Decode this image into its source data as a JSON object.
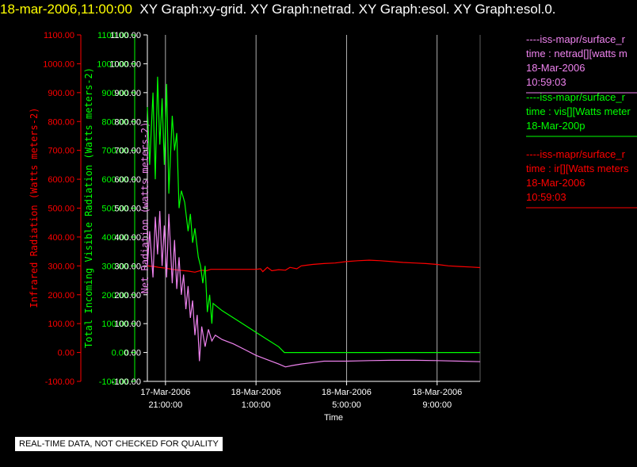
{
  "header": {
    "timestamp": "18-mar-2006,11:00:00",
    "graphs": "XY Graph:xy-grid.  XY Graph:netrad.  XY Graph:esol.  XY Graph:esol.0."
  },
  "disclaimer": "REAL-TIME DATA, NOT CHECKED FOR QUALITY",
  "colors": {
    "infrared": "#ff0000",
    "visible": "#00ff00",
    "net": "#ee82ee",
    "grid": "#ffffff"
  },
  "chart_data": {
    "type": "line",
    "xlabel": "Time",
    "x_ticks": [
      {
        "line1": "17-Mar-2006",
        "line2": "21:00:00"
      },
      {
        "line1": "18-Mar-2006",
        "line2": "1:00:00"
      },
      {
        "line1": "18-Mar-2006",
        "line2": "5:00:00"
      },
      {
        "line1": "18-Mar-2006",
        "line2": "9:00:00"
      }
    ],
    "x_unit": "hours since 17-Mar-2006 21:00",
    "xlim": [
      -0.8,
      13.9
    ],
    "ylim": [
      -100,
      1100
    ],
    "y_ticks": [
      "-100.00",
      "0.00",
      "100.00",
      "200.00",
      "300.00",
      "400.00",
      "500.00",
      "600.00",
      "700.00",
      "800.00",
      "900.00",
      "1000.00",
      "1100.00"
    ],
    "axes": [
      {
        "label": "Infrared Radiation (Watts meters-2)",
        "color": "#ff0000"
      },
      {
        "label": "Total Incoming Visible Radiation (Watts meters-2)",
        "color": "#00ff00"
      },
      {
        "label": "Net Radiation (watts meters-2)",
        "color": "#ee82ee"
      }
    ],
    "series": [
      {
        "name": "ir",
        "color": "#ff0000",
        "points": [
          [
            -0.8,
            300
          ],
          [
            -0.5,
            298
          ],
          [
            -0.3,
            295
          ],
          [
            0,
            292
          ],
          [
            0.3,
            288
          ],
          [
            0.6,
            285
          ],
          [
            1,
            282
          ],
          [
            1.3,
            278
          ],
          [
            1.6,
            285
          ],
          [
            1.8,
            283
          ],
          [
            2,
            288
          ],
          [
            2.5,
            288
          ],
          [
            3,
            288
          ],
          [
            3.5,
            288
          ],
          [
            4,
            288
          ],
          [
            4.2,
            290
          ],
          [
            4.3,
            280
          ],
          [
            4.5,
            295
          ],
          [
            4.7,
            283
          ],
          [
            5,
            287
          ],
          [
            5.3,
            285
          ],
          [
            5.5,
            295
          ],
          [
            5.8,
            290
          ],
          [
            6,
            300
          ],
          [
            6.5,
            305
          ],
          [
            7,
            308
          ],
          [
            7.5,
            310
          ],
          [
            8,
            315
          ],
          [
            8.5,
            318
          ],
          [
            9,
            320
          ],
          [
            9.5,
            318
          ],
          [
            10,
            315
          ],
          [
            10.5,
            312
          ],
          [
            11,
            310
          ],
          [
            11.5,
            308
          ],
          [
            12,
            305
          ],
          [
            12.5,
            300
          ],
          [
            13,
            298
          ],
          [
            13.5,
            296
          ],
          [
            13.9,
            294
          ]
        ]
      },
      {
        "name": "vis",
        "color": "#00ff00",
        "points": [
          [
            -0.8,
            850
          ],
          [
            -0.7,
            650
          ],
          [
            -0.55,
            900
          ],
          [
            -0.45,
            600
          ],
          [
            -0.35,
            955
          ],
          [
            -0.25,
            720
          ],
          [
            -0.15,
            880
          ],
          [
            -0.05,
            650
          ],
          [
            0.05,
            930
          ],
          [
            0.15,
            550
          ],
          [
            0.3,
            820
          ],
          [
            0.4,
            700
          ],
          [
            0.5,
            760
          ],
          [
            0.6,
            500
          ],
          [
            0.7,
            560
          ],
          [
            0.85,
            520
          ],
          [
            1.0,
            420
          ],
          [
            1.1,
            480
          ],
          [
            1.2,
            380
          ],
          [
            1.3,
            430
          ],
          [
            1.45,
            330
          ],
          [
            1.55,
            300
          ],
          [
            1.65,
            240
          ],
          [
            1.75,
            300
          ],
          [
            1.85,
            140
          ],
          [
            1.95,
            200
          ],
          [
            2.05,
            100
          ],
          [
            2.1,
            170
          ],
          [
            2.5,
            145
          ],
          [
            3,
            120
          ],
          [
            3.5,
            95
          ],
          [
            4,
            70
          ],
          [
            4.5,
            45
          ],
          [
            5,
            20
          ],
          [
            5.25,
            0
          ],
          [
            6,
            0
          ],
          [
            8,
            0
          ],
          [
            10,
            0
          ],
          [
            12,
            0
          ],
          [
            13.9,
            0
          ]
        ]
      },
      {
        "name": "netrad",
        "color": "#ee82ee",
        "points": [
          [
            -0.8,
            300
          ],
          [
            -0.7,
            420
          ],
          [
            -0.55,
            260
          ],
          [
            -0.45,
            470
          ],
          [
            -0.35,
            340
          ],
          [
            -0.25,
            490
          ],
          [
            -0.15,
            300
          ],
          [
            -0.05,
            440
          ],
          [
            0.05,
            260
          ],
          [
            0.15,
            480
          ],
          [
            0.3,
            240
          ],
          [
            0.4,
            390
          ],
          [
            0.5,
            220
          ],
          [
            0.6,
            330
          ],
          [
            0.7,
            200
          ],
          [
            0.8,
            270
          ],
          [
            0.9,
            150
          ],
          [
            1.0,
            230
          ],
          [
            1.1,
            120
          ],
          [
            1.2,
            180
          ],
          [
            1.3,
            60
          ],
          [
            1.4,
            130
          ],
          [
            1.5,
            -30
          ],
          [
            1.6,
            90
          ],
          [
            1.75,
            20
          ],
          [
            1.9,
            80
          ],
          [
            2.05,
            40
          ],
          [
            2.2,
            60
          ],
          [
            2.5,
            45
          ],
          [
            3,
            30
          ],
          [
            3.5,
            10
          ],
          [
            4,
            -10
          ],
          [
            4.5,
            -25
          ],
          [
            5,
            -40
          ],
          [
            5.3,
            -50
          ],
          [
            5.6,
            -45
          ],
          [
            6,
            -40
          ],
          [
            6.5,
            -35
          ],
          [
            7,
            -30
          ],
          [
            8,
            -30
          ],
          [
            9,
            -28
          ],
          [
            10,
            -27
          ],
          [
            11,
            -27
          ],
          [
            12,
            -28
          ],
          [
            13,
            -30
          ],
          [
            13.9,
            -32
          ]
        ]
      }
    ],
    "legend": [
      {
        "color": "#ee82ee",
        "lines": [
          "----iss-mapr/surface_r",
          "time : netrad[][watts m",
          "18-Mar-2006",
          "10:59:03"
        ]
      },
      {
        "color": "#00ff00",
        "lines": [
          "----iss-mapr/surface_r",
          "time : vis[][Watts meter",
          "18-Mar-200p"
        ]
      },
      {
        "color": "#ff0000",
        "lines": [
          "----iss-mapr/surface_r",
          "time : ir[][Watts meters",
          "18-Mar-2006",
          "10:59:03"
        ]
      }
    ]
  }
}
